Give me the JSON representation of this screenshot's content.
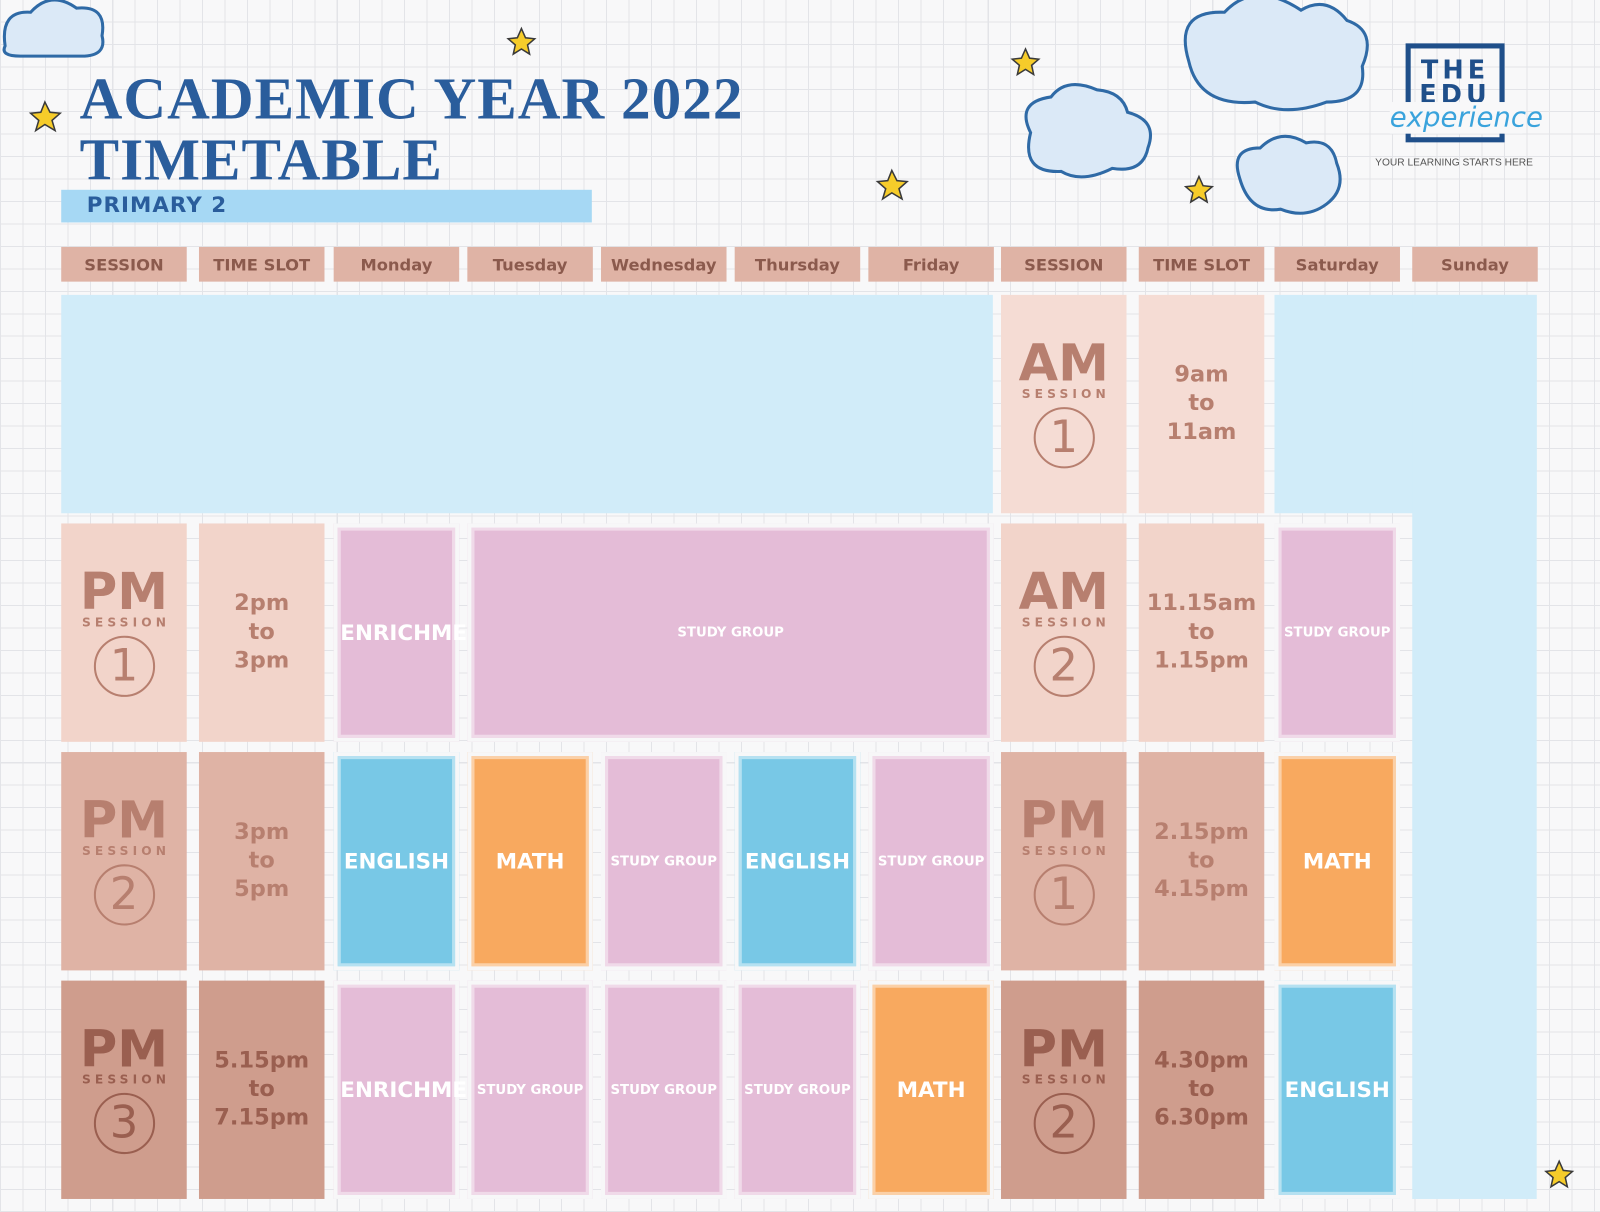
{
  "header": {
    "title_line1": "ACADEMIC YEAR 2022",
    "title_line2": "TIMETABLE",
    "class": "PRIMARY 2"
  },
  "logo": {
    "line1": "THE",
    "line2": "EDU",
    "line3": "experience",
    "tagline": "YOUR LEARNING STARTS HERE"
  },
  "timetable": {
    "columns": [
      "SESSION",
      "TIME SLOT",
      "Monday",
      "Tuesday",
      "Wednesday",
      "Thursday",
      "Friday",
      "SESSION",
      "TIME SLOT",
      "Saturday",
      "Sunday"
    ],
    "weekday_rows": [
      {
        "session": {
          "period": "PM",
          "label": "SESSION",
          "number": "1"
        },
        "time": [
          "2pm",
          "to",
          "3pm"
        ],
        "classes": [
          {
            "name": "ENRICHMENT",
            "color": "#e4bcd7"
          },
          {
            "name": "STUDY GROUP",
            "color": "#e4bcd7"
          }
        ]
      },
      {
        "session": {
          "period": "PM",
          "label": "SESSION",
          "number": "2"
        },
        "time": [
          "3pm",
          "to",
          "5pm"
        ],
        "classes": [
          {
            "name": "ENGLISH",
            "color": "#78c8e6"
          },
          {
            "name": "MATH",
            "color": "#f8a95f"
          },
          {
            "name": "STUDY GROUP",
            "color": "#e4bcd7"
          },
          {
            "name": "ENGLISH",
            "color": "#78c8e6"
          },
          {
            "name": "STUDY GROUP",
            "color": "#e4bcd7"
          }
        ]
      },
      {
        "session": {
          "period": "PM",
          "label": "SESSION",
          "number": "3"
        },
        "time": [
          "5.15pm",
          "to",
          "7.15pm"
        ],
        "classes": [
          {
            "name": "ENRICHMENT",
            "color": "#e4bcd7"
          },
          {
            "name": "STUDY GROUP",
            "color": "#e4bcd7"
          },
          {
            "name": "STUDY GROUP",
            "color": "#e4bcd7"
          },
          {
            "name": "STUDY GROUP",
            "color": "#e4bcd7"
          },
          {
            "name": "MATH",
            "color": "#f8a95f"
          }
        ]
      }
    ],
    "weekend_rows": [
      {
        "session": {
          "period": "AM",
          "label": "SESSION",
          "number": "1"
        },
        "time": [
          "9am",
          "to",
          "11am"
        ],
        "saturday": null
      },
      {
        "session": {
          "period": "AM",
          "label": "SESSION",
          "number": "2"
        },
        "time": [
          "11.15am",
          "to",
          "1.15pm"
        ],
        "saturday": {
          "name": "STUDY GROUP",
          "color": "#e4bcd7"
        }
      },
      {
        "session": {
          "period": "PM",
          "label": "SESSION",
          "number": "1"
        },
        "time": [
          "2.15pm",
          "to",
          "4.15pm"
        ],
        "saturday": {
          "name": "MATH",
          "color": "#f8a95f"
        }
      },
      {
        "session": {
          "period": "PM",
          "label": "SESSION",
          "number": "2"
        },
        "time": [
          "4.30pm",
          "to",
          "6.30pm"
        ],
        "saturday": {
          "name": "ENGLISH",
          "color": "#78c8e6"
        }
      }
    ]
  }
}
